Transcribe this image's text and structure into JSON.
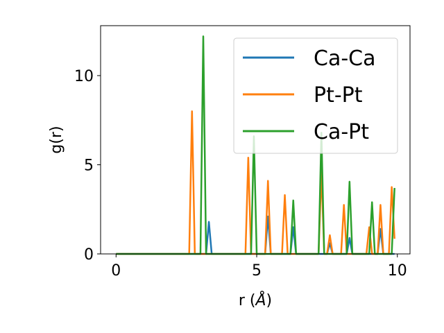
{
  "chart_data": {
    "type": "line",
    "xlabel_main": "r (",
    "xlabel_unit": "Å",
    "xlabel_close": ")",
    "ylabel": "g(r)",
    "xlim": [
      -0.55,
      10.45
    ],
    "ylim": [
      0,
      12.8
    ],
    "xticks": [
      0,
      5,
      10
    ],
    "xtick_labels": [
      "0",
      "5",
      "10"
    ],
    "yticks": [
      0,
      5,
      10
    ],
    "ytick_labels": [
      "0",
      "5",
      "10"
    ],
    "grid": false,
    "legend_position": "top-right",
    "series": [
      {
        "name": "Ca-Ca",
        "color": "#1f77b4",
        "x": [
          0,
          3.2,
          3.3,
          3.4,
          5.3,
          5.4,
          5.5,
          6.2,
          6.3,
          6.4,
          7.5,
          7.6,
          7.7,
          8.2,
          8.3,
          8.4,
          9.3,
          9.4,
          9.5,
          9.8,
          9.9
        ],
        "y": [
          0,
          0,
          1.8,
          0,
          0,
          2.1,
          0,
          0,
          1.5,
          0,
          0,
          0.6,
          0,
          0,
          0.9,
          0,
          0,
          1.4,
          0,
          0,
          0
        ]
      },
      {
        "name": "Pt-Pt",
        "color": "#ff7f0e",
        "x": [
          0,
          2.6,
          2.7,
          2.8,
          4.6,
          4.7,
          4.8,
          5.3,
          5.4,
          5.5,
          5.9,
          6.0,
          6.1,
          7.2,
          7.3,
          7.4,
          7.5,
          7.6,
          7.7,
          8.0,
          8.1,
          8.2,
          8.9,
          9.0,
          9.1,
          9.3,
          9.4,
          9.5,
          9.7,
          9.8,
          9.9
        ],
        "y": [
          0,
          0,
          8.0,
          0,
          0,
          5.4,
          0,
          0,
          4.1,
          0,
          0,
          3.3,
          0,
          0,
          4.6,
          0,
          0,
          1.05,
          0,
          0,
          2.75,
          0,
          0,
          1.5,
          0,
          0,
          2.75,
          0,
          0,
          3.75,
          0.85
        ]
      },
      {
        "name": "Ca-Pt",
        "color": "#2ca02c",
        "x": [
          0,
          3.0,
          3.1,
          3.2,
          4.8,
          4.9,
          5.0,
          6.2,
          6.3,
          6.4,
          7.2,
          7.3,
          7.4,
          8.2,
          8.3,
          8.4,
          9.0,
          9.1,
          9.2,
          9.8,
          9.9
        ],
        "y": [
          0,
          0,
          12.2,
          0,
          0,
          6.6,
          0,
          0,
          3.0,
          0,
          0,
          6.8,
          0,
          0,
          4.05,
          0,
          0,
          2.9,
          0,
          0,
          3.7
        ]
      }
    ]
  }
}
